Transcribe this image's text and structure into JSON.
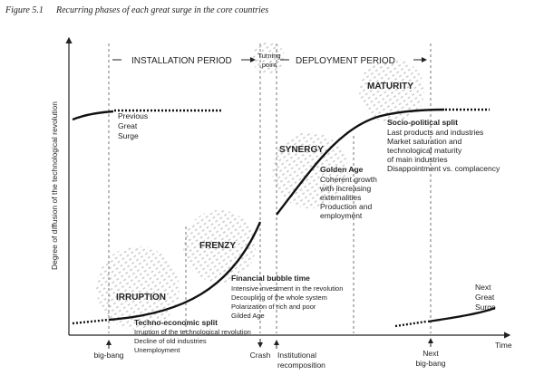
{
  "figure": {
    "label": "Figure 5.1",
    "title": "Recurring phases of each great surge in the core countries"
  },
  "axes": {
    "y_label": "Degree of diffusion of the technological revolution",
    "x_label": "Time"
  },
  "periods": {
    "installation": "INSTALLATION PERIOD",
    "turning_point": [
      "Turning",
      "point"
    ],
    "deployment": "DEPLOYMENT PERIOD"
  },
  "phases": {
    "irruption": "IRRUPTION",
    "frenzy": "FRENZY",
    "synergy": "SYNERGY",
    "maturity": "MATURITY"
  },
  "surges": {
    "previous": [
      "Previous",
      "Great",
      "Surge"
    ],
    "next": [
      "Next",
      "Great",
      "Surge"
    ]
  },
  "notes": {
    "techno_economic": {
      "title": "Techno-economic split",
      "lines": [
        "Irruption of the technological revolution",
        "Decline of old industries",
        "Unemployment"
      ]
    },
    "financial_bubble": {
      "title": "Financial bubble time",
      "lines": [
        "Intensive investment in the revolution",
        "Decoupling of the whole system",
        "Polarization of rich and poor",
        "Gilded Age"
      ]
    },
    "golden_age": {
      "title": "Golden Age",
      "lines": [
        "Coherent growth",
        "with increasing",
        "externalities",
        "Production and",
        "employment"
      ]
    },
    "socio_political": {
      "title": "Socio-political split",
      "lines": [
        "Last products and industries",
        "Market saturation and",
        "technological maturity",
        "of main industries",
        "Disappointment vs. complacency"
      ]
    }
  },
  "events": {
    "big_bang": "big-bang",
    "crash": "Crash",
    "institutional": [
      "Institutional",
      "recomposition"
    ],
    "next_big_bang": [
      "Next",
      "big-bang"
    ]
  }
}
